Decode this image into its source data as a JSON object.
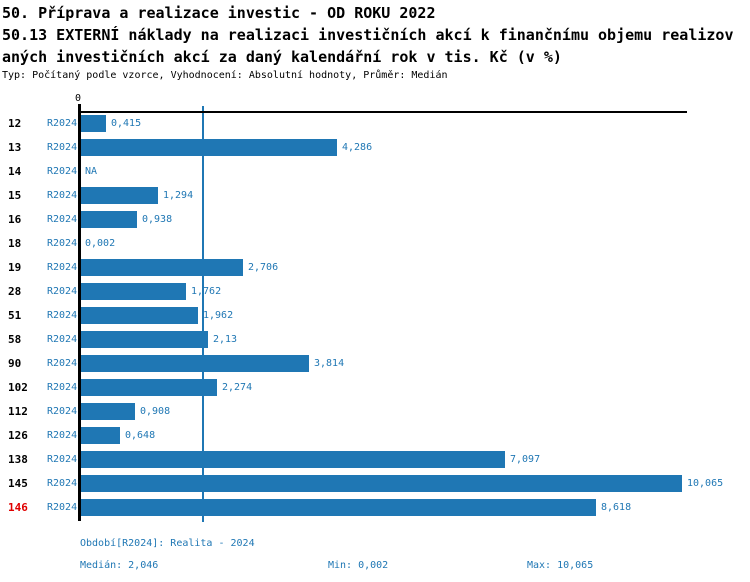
{
  "header": {
    "title_line1": "50. Příprava a realizace investic - OD ROKU 2022",
    "title_line2": "50.13 EXTERNÍ náklady na realizaci investičních akcí k finančnímu objemu realizov",
    "title_line3": "aných investičních akcí za daný kalendářní rok v tis. Kč (v %)",
    "subtitle": "Typ: Počítaný podle vzorce, Vyhodnocení: Absolutní hodnoty, Průměr: Medián"
  },
  "chart_data": {
    "type": "bar",
    "orientation": "horizontal",
    "title": "50.13 EXTERNÍ náklady na realizaci investičních akcí k finančnímu objemu realizovaných investičních akcí za daný kalendářní rok v tis. Kč (v %)",
    "xlabel": "",
    "ylabel": "",
    "xlim": [
      0,
      10.15
    ],
    "zero_tick_label": "0",
    "median_value": 2.046,
    "min_value": 0.002,
    "max_value": 10.065,
    "legend_position": "none",
    "grid": false,
    "rows": [
      {
        "category": "12",
        "period": "R2024",
        "value": 0.415,
        "label": "0,415",
        "highlight": false
      },
      {
        "category": "13",
        "period": "R2024",
        "value": 4.286,
        "label": "4,286",
        "highlight": false
      },
      {
        "category": "14",
        "period": "R2024",
        "value": null,
        "label": "NA",
        "highlight": false
      },
      {
        "category": "15",
        "period": "R2024",
        "value": 1.294,
        "label": "1,294",
        "highlight": false
      },
      {
        "category": "16",
        "period": "R2024",
        "value": 0.938,
        "label": "0,938",
        "highlight": false
      },
      {
        "category": "18",
        "period": "R2024",
        "value": 0.002,
        "label": "0,002",
        "highlight": false
      },
      {
        "category": "19",
        "period": "R2024",
        "value": 2.706,
        "label": "2,706",
        "highlight": false
      },
      {
        "category": "28",
        "period": "R2024",
        "value": 1.762,
        "label": "1,762",
        "highlight": false
      },
      {
        "category": "51",
        "period": "R2024",
        "value": 1.962,
        "label": "1,962",
        "highlight": false
      },
      {
        "category": "58",
        "period": "R2024",
        "value": 2.13,
        "label": "2,13",
        "highlight": false
      },
      {
        "category": "90",
        "period": "R2024",
        "value": 3.814,
        "label": "3,814",
        "highlight": false
      },
      {
        "category": "102",
        "period": "R2024",
        "value": 2.274,
        "label": "2,274",
        "highlight": false
      },
      {
        "category": "112",
        "period": "R2024",
        "value": 0.908,
        "label": "0,908",
        "highlight": false
      },
      {
        "category": "126",
        "period": "R2024",
        "value": 0.648,
        "label": "0,648",
        "highlight": false
      },
      {
        "category": "138",
        "period": "R2024",
        "value": 7.097,
        "label": "7,097",
        "highlight": false
      },
      {
        "category": "145",
        "period": "R2024",
        "value": 10.065,
        "label": "10,065",
        "highlight": false
      },
      {
        "category": "146",
        "period": "R2024",
        "value": 8.618,
        "label": "8,618",
        "highlight": true
      }
    ]
  },
  "footer": {
    "period_line": "Období[R2024]: Realita - 2024",
    "median": "Medián: 2,046",
    "min": "Min: 0,002",
    "max": "Max: 10,065"
  },
  "colors": {
    "bar_blue": "#1F77B4",
    "text_blue": "#1F77B4",
    "highlight_red": "#E00000",
    "axis_black": "#000000"
  }
}
